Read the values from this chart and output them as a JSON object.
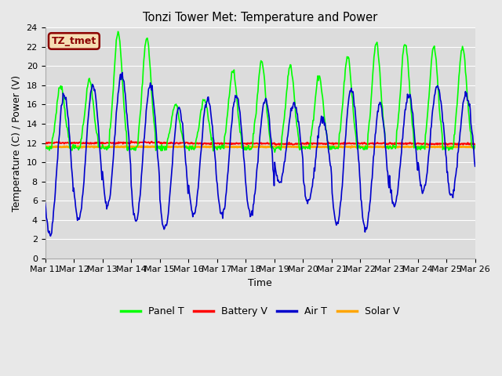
{
  "title": "Tonzi Tower Met: Temperature and Power",
  "xlabel": "Time",
  "ylabel": "Temperature (C) / Power (V)",
  "annotation": "TZ_tmet",
  "ylim": [
    0,
    24
  ],
  "yticks": [
    0,
    2,
    4,
    6,
    8,
    10,
    12,
    14,
    16,
    18,
    20,
    22,
    24
  ],
  "xtick_labels": [
    "Mar 11",
    "Mar 12",
    "Mar 13",
    "Mar 14",
    "Mar 15",
    "Mar 16",
    "Mar 17",
    "Mar 18",
    "Mar 19",
    "Mar 20",
    "Mar 21",
    "Mar 22",
    "Mar 23",
    "Mar 24",
    "Mar 25",
    "Mar 26"
  ],
  "panel_T_color": "#00FF00",
  "battery_V_color": "#FF0000",
  "air_T_color": "#0000CC",
  "solar_V_color": "#FFA500",
  "fig_bg_color": "#E8E8E8",
  "plot_bg_color": "#DCDCDC",
  "grid_color": "#FFFFFF",
  "legend_labels": [
    "Panel T",
    "Battery V",
    "Air T",
    "Solar V"
  ],
  "panel_T_lw": 1.2,
  "battery_V_lw": 1.5,
  "air_T_lw": 1.2,
  "solar_V_lw": 2.0,
  "annot_facecolor": "#F5DEB3",
  "annot_edgecolor": "#8B0000",
  "annot_textcolor": "#8B0000"
}
